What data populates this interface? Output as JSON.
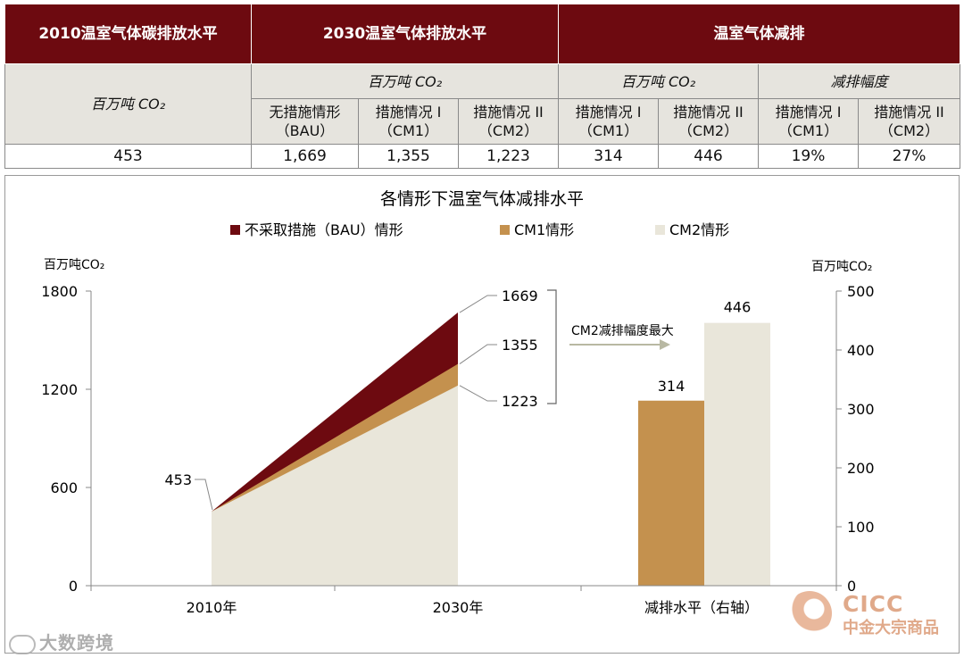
{
  "table": {
    "headers": [
      "2010温室气体碳排放水平",
      "2030温室气体排放水平",
      "温室气体减排"
    ],
    "unit_2010": "百万吨 CO₂",
    "unit_2030": "百万吨 CO₂",
    "unit_reduction": "百万吨 CO₂",
    "unit_range": "减排幅度",
    "scenarios": [
      {
        "line1": "无措施情形",
        "line2": "（BAU）"
      },
      {
        "line1": "措施情况 I",
        "line2": "（CM1）"
      },
      {
        "line1": "措施情况 II",
        "line2": "（CM2）"
      },
      {
        "line1": "措施情况 I",
        "line2": "（CM1）"
      },
      {
        "line1": "措施情况 II",
        "line2": "（CM2）"
      },
      {
        "line1": "措施情况 I",
        "line2": "（CM1）"
      },
      {
        "line1": "措施情况 II",
        "line2": "（CM2）"
      }
    ],
    "values": [
      "453",
      "1,669",
      "1,355",
      "1,223",
      "314",
      "446",
      "19%",
      "27%"
    ]
  },
  "chart_data": {
    "type": "area",
    "title": "各情形下温室气体减排水平",
    "colors": {
      "bau": "#6d0a10",
      "cm1": "#c4914e",
      "cm2": "#e9e6da",
      "axis": "#888888",
      "arrow": "#b8b8a2"
    },
    "legend": [
      "不采取措施（BAU）情形",
      "CM1情形",
      "CM2情形"
    ],
    "left_axis": {
      "label": "百万吨CO₂",
      "ylim": [
        0,
        1800
      ],
      "ticks": [
        0,
        600,
        1200,
        1800
      ]
    },
    "right_axis": {
      "label": "百万吨CO₂",
      "ylim": [
        0,
        500
      ],
      "ticks": [
        0,
        100,
        200,
        300,
        400,
        500
      ]
    },
    "categories": [
      "2010年",
      "2030年",
      "减排水平（右轴）"
    ],
    "area_series": [
      {
        "name": "不采取措施（BAU）情形",
        "x": [
          "2010年",
          "2030年"
        ],
        "values": [
          453,
          1669
        ]
      },
      {
        "name": "CM1情形",
        "x": [
          "2010年",
          "2030年"
        ],
        "values": [
          453,
          1355
        ]
      },
      {
        "name": "CM2情形",
        "x": [
          "2010年",
          "2030年"
        ],
        "values": [
          453,
          1223
        ]
      }
    ],
    "bar_series": [
      {
        "name": "CM1情形",
        "category": "减排水平（右轴）",
        "value": 314
      },
      {
        "name": "CM2情形",
        "category": "减排水平（右轴）",
        "value": 446
      }
    ],
    "data_labels": {
      "start": "453",
      "bau": "1669",
      "cm1": "1355",
      "cm2": "1223",
      "bar_cm1": "314",
      "bar_cm2": "446"
    },
    "annotation": "CM2减排幅度最大"
  },
  "watermark": {
    "left": "大数跨境",
    "brand": "CICC",
    "brand_sub": "中金大宗商品"
  }
}
